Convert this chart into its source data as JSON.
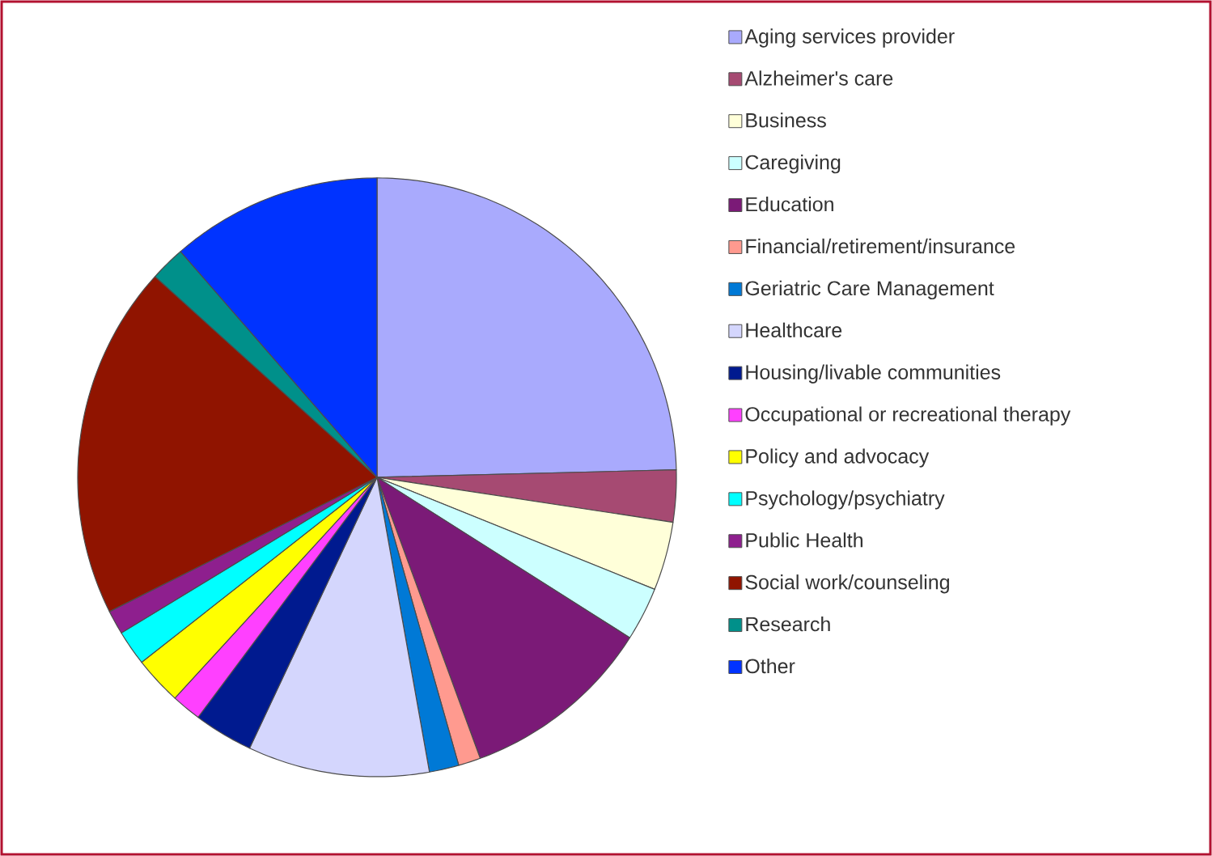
{
  "chart_data": {
    "type": "pie",
    "categories": [
      "Aging services provider",
      "Alzheimer's care",
      "Business",
      "Caregiving",
      "Education",
      "Financial/retirement/insurance",
      "Geriatric Care Management",
      "Healthcare",
      "Housing/livable communities",
      "Occupational or recreational therapy",
      "Policy and advocacy",
      "Psychology/psychiatry",
      "Public Health",
      "Social work/counseling",
      "Research",
      "Other"
    ],
    "values": [
      24.6,
      2.8,
      3.7,
      2.9,
      10.4,
      1.2,
      1.6,
      9.8,
      3.2,
      1.6,
      2.6,
      1.9,
      1.3,
      19.1,
      1.9,
      11.4
    ],
    "colors": [
      "#a9aafd",
      "#a64a72",
      "#ffffd9",
      "#ccffff",
      "#7b1a77",
      "#ff9a8f",
      "#0079d6",
      "#d4d6fd",
      "#001a8f",
      "#ff40ff",
      "#ffff00",
      "#00ffff",
      "#8e1f8e",
      "#901400",
      "#00908a",
      "#0033ff"
    ],
    "legend": "right"
  }
}
